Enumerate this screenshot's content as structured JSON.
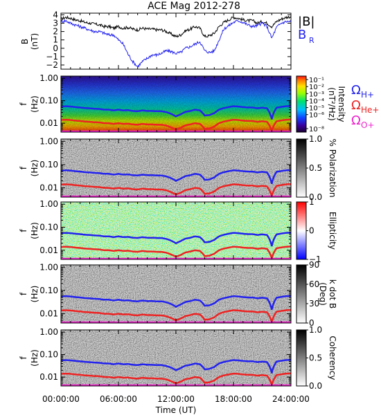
{
  "title": "ACE Mag 2012-278",
  "x_axis": {
    "label": "Time (UT)",
    "ticks": [
      "00:00:00",
      "06:00:00",
      "12:00:00",
      "18:00:00",
      "24:00:00"
    ],
    "range_hours": [
      0,
      24
    ]
  },
  "freq_axis": {
    "label_f": "f",
    "label_unit": "(Hz)",
    "ticks": [
      "0.01",
      "0.10",
      "1.00"
    ],
    "scale": "log"
  },
  "legend": {
    "panel1": {
      "B": "|B|",
      "BR": "B",
      "BR_sub": "R"
    },
    "panel2": [
      {
        "omega": "Ω",
        "sub": "H+",
        "color": "#2222ee"
      },
      {
        "omega": "Ω",
        "sub": "He+",
        "color": "#ee2222"
      },
      {
        "omega": "Ω",
        "sub": "O+",
        "color": "#ee22cc"
      }
    ]
  },
  "colors": {
    "B_total": "#000000",
    "B_R": "#2222ee",
    "f_H": "#2222ee",
    "f_He": "#ee2222",
    "f_O": "#ee22cc"
  },
  "colorbars": [
    {
      "label": "Intensity",
      "units": "(nT²/Hz)",
      "ticks": [
        "10⁻⁸",
        "10⁻⁶",
        "10⁻⁵",
        "10⁻⁴",
        "10⁻³",
        "10⁻²",
        "10⁻¹"
      ],
      "style": "rainbow"
    },
    {
      "label": "% Polarization",
      "units": "",
      "ticks": [
        "0.0",
        "0.5",
        "1.0"
      ],
      "style": "gray"
    },
    {
      "label": "Ellipticity",
      "units": "",
      "ticks": [
        "−1",
        "0",
        "1"
      ],
      "style": "bwr"
    },
    {
      "label": "k dot B",
      "units": "(Deg)",
      "ticks": [
        "0",
        "30",
        "60",
        "90"
      ],
      "style": "gray"
    },
    {
      "label": "Coherency",
      "units": "",
      "ticks": [
        "0.0",
        "0.5",
        "1.0"
      ],
      "style": "gray"
    }
  ],
  "chart_data": [
    {
      "type": "line",
      "panel": "B field",
      "ylabel": "B",
      "yunit": "(nT)",
      "ylim": [
        -2.5,
        4.2
      ],
      "yticks": [
        "−2",
        "−1",
        "0",
        "1",
        "2",
        "3",
        "4"
      ],
      "x_hours": [
        0,
        0.5,
        1,
        1.5,
        2,
        2.5,
        3,
        3.5,
        4,
        4.5,
        5,
        5.5,
        6,
        6.5,
        7,
        7.5,
        8,
        8.5,
        9,
        9.5,
        10,
        10.5,
        11,
        11.5,
        12,
        12.5,
        13,
        13.5,
        14,
        14.5,
        15,
        15.5,
        16,
        16.5,
        17,
        17.5,
        18,
        18.5,
        19,
        19.5,
        20,
        20.5,
        21,
        21.5,
        22,
        22.5,
        23,
        23.5,
        24
      ],
      "series": [
        {
          "name": "|B|",
          "values": [
            3.5,
            3.7,
            3.6,
            3.4,
            3.3,
            3.1,
            3.0,
            2.9,
            2.8,
            2.6,
            2.6,
            2.4,
            2.6,
            2.4,
            2.5,
            2.3,
            2.2,
            2.4,
            2.3,
            2.3,
            2.2,
            2.2,
            2.0,
            1.7,
            1.4,
            1.6,
            2.1,
            2.3,
            2.6,
            2.4,
            1.4,
            1.5,
            1.8,
            2.6,
            3.1,
            3.4,
            3.7,
            3.6,
            3.4,
            3.3,
            3.3,
            3.0,
            3.2,
            3.0,
            2.6,
            3.2,
            3.5,
            3.7,
            3.8
          ]
        },
        {
          "name": "B_R",
          "values": [
            3.2,
            3.3,
            3.0,
            2.8,
            2.6,
            2.4,
            2.2,
            2.0,
            2.0,
            1.8,
            1.6,
            1.6,
            1.0,
            0.5,
            -0.7,
            -1.6,
            -2.2,
            -1.6,
            -1.2,
            -0.8,
            -0.8,
            -0.6,
            -0.3,
            -0.4,
            -0.6,
            -0.5,
            0.0,
            0.2,
            0.5,
            0.8,
            -0.3,
            -0.5,
            -0.3,
            1.0,
            2.3,
            2.7,
            3.1,
            3.3,
            3.1,
            2.8,
            2.6,
            2.7,
            3.0,
            2.6,
            1.2,
            2.5,
            3.0,
            3.2,
            3.2
          ]
        }
      ]
    },
    {
      "type": "line",
      "panel": "gyrofrequency overlays (all spectral panels)",
      "ylabel": "f (Hz)",
      "ylim": [
        0.004,
        1.0
      ],
      "x_hours": [
        0,
        0.5,
        1,
        1.5,
        2,
        2.5,
        3,
        3.5,
        4,
        4.5,
        5,
        5.5,
        6,
        6.5,
        7,
        7.5,
        8,
        8.5,
        9,
        9.5,
        10,
        10.5,
        11,
        11.5,
        12,
        12.5,
        13,
        13.5,
        14,
        14.5,
        15,
        15.5,
        16,
        16.5,
        17,
        17.5,
        18,
        18.5,
        19,
        19.5,
        20,
        20.5,
        21,
        21.5,
        22,
        22.5,
        23,
        23.5,
        24
      ],
      "series": [
        {
          "name": "Ω_H+",
          "values": [
            0.055,
            0.057,
            0.055,
            0.052,
            0.05,
            0.047,
            0.046,
            0.044,
            0.043,
            0.04,
            0.04,
            0.037,
            0.04,
            0.037,
            0.038,
            0.035,
            0.034,
            0.037,
            0.035,
            0.035,
            0.034,
            0.034,
            0.031,
            0.026,
            0.02,
            0.025,
            0.032,
            0.035,
            0.04,
            0.037,
            0.022,
            0.023,
            0.028,
            0.04,
            0.047,
            0.052,
            0.057,
            0.055,
            0.052,
            0.05,
            0.05,
            0.046,
            0.049,
            0.046,
            0.015,
            0.049,
            0.053,
            0.057,
            0.058
          ]
        },
        {
          "name": "Ω_He+",
          "values": [
            0.0138,
            0.0142,
            0.0138,
            0.013,
            0.0125,
            0.0118,
            0.0115,
            0.011,
            0.0108,
            0.01,
            0.01,
            0.0093,
            0.01,
            0.0093,
            0.0095,
            0.0088,
            0.0085,
            0.0093,
            0.0088,
            0.0088,
            0.0085,
            0.0085,
            0.0078,
            0.0065,
            0.0052,
            0.0062,
            0.008,
            0.0088,
            0.01,
            0.0093,
            0.0055,
            0.0058,
            0.007,
            0.01,
            0.0118,
            0.013,
            0.0142,
            0.0138,
            0.013,
            0.0125,
            0.0125,
            0.0115,
            0.0122,
            0.0115,
            0.0045,
            0.0122,
            0.0132,
            0.0142,
            0.0145
          ]
        },
        {
          "name": "Ω_O+",
          "values": [
            0.0042,
            0.0042,
            0.0042,
            0.0042,
            0.0042,
            0.0042,
            0.0042,
            0.0042,
            0.0042,
            0.0042,
            0.0042,
            0.0042,
            0.0042,
            0.0042,
            0.0042,
            0.0042,
            0.0042,
            0.0042,
            0.0042,
            0.0042,
            0.0042,
            0.0042,
            0.0042,
            0.0042,
            0.0042,
            0.0042,
            0.0042,
            0.0042,
            0.0042,
            0.0042,
            0.0042,
            0.0042,
            0.0042,
            0.0042,
            0.0042,
            0.0042,
            0.0042,
            0.0042,
            0.0042,
            0.0042,
            0.0042,
            0.0042,
            0.0042,
            0.0042,
            0.0042,
            0.0042,
            0.0042,
            0.0042,
            0.0042
          ]
        }
      ]
    }
  ]
}
